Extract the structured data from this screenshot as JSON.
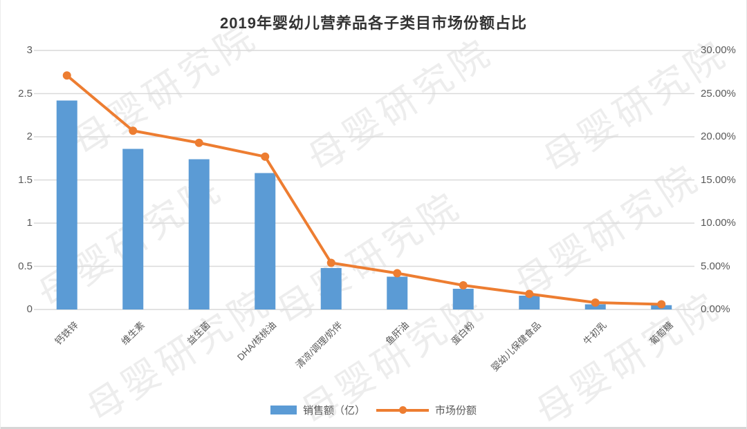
{
  "watermark": {
    "text": "母婴研究院"
  },
  "chart_data": {
    "type": "bar+line",
    "title": "2019年婴幼儿营养品各子类目市场份额占比",
    "categories": [
      "钙铁锌",
      "维生素",
      "益生菌",
      "DHA/核桃油",
      "清凉/调理/奶伴",
      "鱼肝油",
      "蛋白粉",
      "婴幼儿保健食品",
      "牛初乳",
      "葡萄糖"
    ],
    "series": [
      {
        "name": "销售额（亿）",
        "type": "bar",
        "axis": "left",
        "color": "#5B9BD5",
        "values": [
          2.42,
          1.86,
          1.74,
          1.58,
          0.48,
          0.38,
          0.24,
          0.16,
          0.06,
          0.05
        ]
      },
      {
        "name": "市场份额",
        "type": "line",
        "axis": "right",
        "color": "#ED7D31",
        "values": [
          27.1,
          20.7,
          19.3,
          17.7,
          5.4,
          4.2,
          2.8,
          1.8,
          0.8,
          0.6
        ]
      }
    ],
    "left_axis": {
      "min": 0,
      "max": 3,
      "tick_labels": [
        "0",
        "0.5",
        "1",
        "1.5",
        "2",
        "2.5",
        "3"
      ]
    },
    "right_axis": {
      "min": 0,
      "max": 30,
      "tick_labels": [
        "0.00%",
        "5.00%",
        "10.00%",
        "15.00%",
        "20.00%",
        "25.00%",
        "30.00%"
      ]
    },
    "grid": "horizontal",
    "legend_position": "bottom",
    "colors": {
      "bar": "#5B9BD5",
      "line": "#ED7D31",
      "gridline": "#D9D9D9",
      "tick_label": "#595959",
      "title": "#333333"
    }
  }
}
